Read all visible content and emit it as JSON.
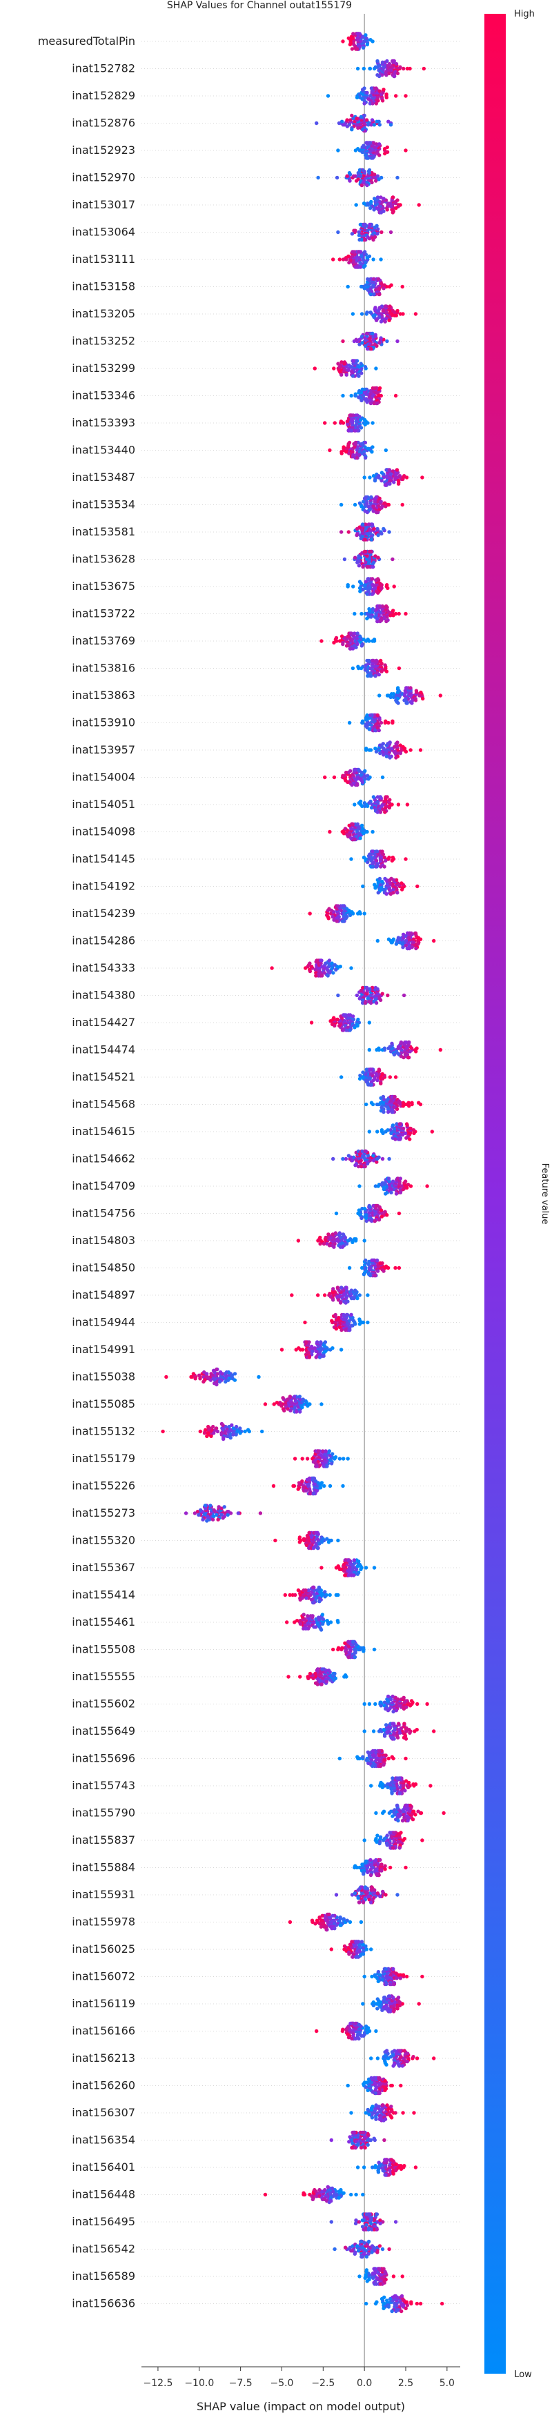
{
  "chart_data": {
    "type": "scatter",
    "title": "SHAP Values for Channel outat155179",
    "xlabel": "SHAP value (impact on model output)",
    "xlim": [
      -13.5,
      5.8
    ],
    "xticks": [
      -12.5,
      -10.0,
      -7.5,
      -5.0,
      -2.5,
      0.0,
      2.5,
      5.0
    ],
    "colorbar": {
      "label": "Feature value",
      "high": "High",
      "low": "Low",
      "low_color": "#008bfb",
      "high_color": "#ff0052"
    },
    "features": [
      {
        "name": "measuredTotalPin",
        "center": -0.3,
        "spread": 0.6,
        "min": -1.3,
        "max": 0.5,
        "trend": -1
      },
      {
        "name": "inat152782",
        "center": 1.3,
        "spread": 1.0,
        "min": -0.4,
        "max": 3.6,
        "trend": 1
      },
      {
        "name": "inat152829",
        "center": 0.5,
        "spread": 1.0,
        "min": -2.2,
        "max": 2.5,
        "trend": 1
      },
      {
        "name": "inat152876",
        "center": -0.2,
        "spread": 1.0,
        "min": -2.9,
        "max": 1.6,
        "trend": 0
      },
      {
        "name": "inat152923",
        "center": 0.5,
        "spread": 0.8,
        "min": -1.6,
        "max": 2.5,
        "trend": 1
      },
      {
        "name": "inat152970",
        "center": 0.0,
        "spread": 0.9,
        "min": -2.8,
        "max": 2.0,
        "trend": 0
      },
      {
        "name": "inat153017",
        "center": 1.1,
        "spread": 1.0,
        "min": -0.5,
        "max": 3.3,
        "trend": 1
      },
      {
        "name": "inat153064",
        "center": 0.1,
        "spread": 0.8,
        "min": -1.6,
        "max": 1.6,
        "trend": 0
      },
      {
        "name": "inat153111",
        "center": -0.4,
        "spread": 0.7,
        "min": -1.9,
        "max": 1.0,
        "trend": -1
      },
      {
        "name": "inat153158",
        "center": 0.6,
        "spread": 0.7,
        "min": -1.0,
        "max": 2.3,
        "trend": 1
      },
      {
        "name": "inat153205",
        "center": 1.0,
        "spread": 0.9,
        "min": -0.7,
        "max": 3.1,
        "trend": 1
      },
      {
        "name": "inat153252",
        "center": 0.3,
        "spread": 0.8,
        "min": -1.3,
        "max": 2.0,
        "trend": 0
      },
      {
        "name": "inat153299",
        "center": -0.8,
        "spread": 0.9,
        "min": -3.0,
        "max": 0.7,
        "trend": -1
      },
      {
        "name": "inat153346",
        "center": 0.3,
        "spread": 0.8,
        "min": -1.3,
        "max": 1.9,
        "trend": 1
      },
      {
        "name": "inat153393",
        "center": -0.7,
        "spread": 0.7,
        "min": -2.4,
        "max": 0.5,
        "trend": -1
      },
      {
        "name": "inat153440",
        "center": -0.4,
        "spread": 0.8,
        "min": -2.1,
        "max": 1.3,
        "trend": -1
      },
      {
        "name": "inat153487",
        "center": 1.5,
        "spread": 0.9,
        "min": 0.0,
        "max": 3.5,
        "trend": 1
      },
      {
        "name": "inat153534",
        "center": 0.5,
        "spread": 0.8,
        "min": -1.4,
        "max": 2.3,
        "trend": 1
      },
      {
        "name": "inat153581",
        "center": 0.2,
        "spread": 0.7,
        "min": -1.4,
        "max": 1.5,
        "trend": 0
      },
      {
        "name": "inat153628",
        "center": 0.2,
        "spread": 0.7,
        "min": -1.2,
        "max": 1.7,
        "trend": 0
      },
      {
        "name": "inat153675",
        "center": 0.4,
        "spread": 0.7,
        "min": -1.0,
        "max": 1.8,
        "trend": 1
      },
      {
        "name": "inat153722",
        "center": 0.9,
        "spread": 0.9,
        "min": -0.6,
        "max": 2.5,
        "trend": 1
      },
      {
        "name": "inat153769",
        "center": -0.7,
        "spread": 0.8,
        "min": -2.6,
        "max": 0.6,
        "trend": -1
      },
      {
        "name": "inat153816",
        "center": 0.6,
        "spread": 0.7,
        "min": -0.7,
        "max": 2.1,
        "trend": 1
      },
      {
        "name": "inat153863",
        "center": 2.7,
        "spread": 0.9,
        "min": 0.9,
        "max": 4.6,
        "trend": 1
      },
      {
        "name": "inat153910",
        "center": 0.6,
        "spread": 0.6,
        "min": -0.9,
        "max": 1.7,
        "trend": 1
      },
      {
        "name": "inat153957",
        "center": 1.5,
        "spread": 0.9,
        "min": 0.1,
        "max": 3.4,
        "trend": 1
      },
      {
        "name": "inat154004",
        "center": -0.5,
        "spread": 0.8,
        "min": -2.4,
        "max": 1.1,
        "trend": -1
      },
      {
        "name": "inat154051",
        "center": 0.8,
        "spread": 0.8,
        "min": -0.6,
        "max": 2.6,
        "trend": 1
      },
      {
        "name": "inat154098",
        "center": -0.6,
        "spread": 0.6,
        "min": -2.1,
        "max": 0.5,
        "trend": -1
      },
      {
        "name": "inat154145",
        "center": 0.8,
        "spread": 0.8,
        "min": -0.8,
        "max": 2.5,
        "trend": 1
      },
      {
        "name": "inat154192",
        "center": 1.5,
        "spread": 0.8,
        "min": -0.1,
        "max": 3.2,
        "trend": 1
      },
      {
        "name": "inat154239",
        "center": -1.5,
        "spread": 0.8,
        "min": -3.3,
        "max": 0.0,
        "trend": -1
      },
      {
        "name": "inat154286",
        "center": 2.6,
        "spread": 0.8,
        "min": 0.8,
        "max": 4.2,
        "trend": 1
      },
      {
        "name": "inat154333",
        "center": -2.5,
        "spread": 0.9,
        "min": -5.6,
        "max": -0.8,
        "trend": -1
      },
      {
        "name": "inat154380",
        "center": 0.3,
        "spread": 0.8,
        "min": -1.6,
        "max": 2.4,
        "trend": 0
      },
      {
        "name": "inat154427",
        "center": -1.1,
        "spread": 0.9,
        "min": -3.2,
        "max": 0.3,
        "trend": -1
      },
      {
        "name": "inat154474",
        "center": 2.2,
        "spread": 1.0,
        "min": 0.3,
        "max": 4.6,
        "trend": 1
      },
      {
        "name": "inat154521",
        "center": 0.5,
        "spread": 0.7,
        "min": -1.4,
        "max": 1.9,
        "trend": 1
      },
      {
        "name": "inat154568",
        "center": 1.6,
        "spread": 0.8,
        "min": 0.1,
        "max": 3.4,
        "trend": 1
      },
      {
        "name": "inat154615",
        "center": 2.1,
        "spread": 0.9,
        "min": 0.3,
        "max": 4.1,
        "trend": 1
      },
      {
        "name": "inat154662",
        "center": 0.0,
        "spread": 0.8,
        "min": -1.9,
        "max": 1.5,
        "trend": 0
      },
      {
        "name": "inat154709",
        "center": 1.8,
        "spread": 0.9,
        "min": -0.3,
        "max": 3.8,
        "trend": 1
      },
      {
        "name": "inat154756",
        "center": 0.5,
        "spread": 0.8,
        "min": -1.7,
        "max": 2.1,
        "trend": 1
      },
      {
        "name": "inat154803",
        "center": -1.7,
        "spread": 0.9,
        "min": -4.0,
        "max": 0.0,
        "trend": -1
      },
      {
        "name": "inat154850",
        "center": 0.6,
        "spread": 0.7,
        "min": -0.9,
        "max": 2.1,
        "trend": 1
      },
      {
        "name": "inat154897",
        "center": -1.3,
        "spread": 0.9,
        "min": -4.4,
        "max": 0.2,
        "trend": -1
      },
      {
        "name": "inat154944",
        "center": -1.1,
        "spread": 0.8,
        "min": -3.6,
        "max": 0.2,
        "trend": -1
      },
      {
        "name": "inat154991",
        "center": -3.0,
        "spread": 0.8,
        "min": -5.0,
        "max": -1.4,
        "trend": -1
      },
      {
        "name": "inat155038",
        "center": -9.0,
        "spread": 1.2,
        "min": -12.0,
        "max": -6.4,
        "trend": -1
      },
      {
        "name": "inat155085",
        "center": -4.3,
        "spread": 0.9,
        "min": -6.0,
        "max": -2.6,
        "trend": -1
      },
      {
        "name": "inat155132",
        "center": -8.5,
        "spread": 1.2,
        "min": -12.2,
        "max": -6.2,
        "trend": -1
      },
      {
        "name": "inat155179",
        "center": -2.5,
        "spread": 0.8,
        "min": -4.2,
        "max": -1.0,
        "trend": -1
      },
      {
        "name": "inat155226",
        "center": -3.2,
        "spread": 0.9,
        "min": -5.5,
        "max": -1.3,
        "trend": -1
      },
      {
        "name": "inat155273",
        "center": -9.2,
        "spread": 1.1,
        "min": -10.8,
        "max": -6.3,
        "trend": 0
      },
      {
        "name": "inat155320",
        "center": -3.0,
        "spread": 0.8,
        "min": -5.4,
        "max": -1.6,
        "trend": -1
      },
      {
        "name": "inat155367",
        "center": -0.8,
        "spread": 0.6,
        "min": -2.6,
        "max": 0.6,
        "trend": -1
      },
      {
        "name": "inat155414",
        "center": -3.2,
        "spread": 0.9,
        "min": -4.8,
        "max": -1.6,
        "trend": -1
      },
      {
        "name": "inat155461",
        "center": -3.2,
        "spread": 0.9,
        "min": -4.7,
        "max": -1.6,
        "trend": -1
      },
      {
        "name": "inat155508",
        "center": -0.8,
        "spread": 0.6,
        "min": -1.9,
        "max": 0.6,
        "trend": -1
      },
      {
        "name": "inat155555",
        "center": -2.5,
        "spread": 0.9,
        "min": -4.6,
        "max": -1.1,
        "trend": -1
      },
      {
        "name": "inat155602",
        "center": 1.8,
        "spread": 0.9,
        "min": 0.0,
        "max": 3.8,
        "trend": 1
      },
      {
        "name": "inat155649",
        "center": 1.8,
        "spread": 0.9,
        "min": 0.0,
        "max": 4.2,
        "trend": 1
      },
      {
        "name": "inat155696",
        "center": 0.7,
        "spread": 0.8,
        "min": -1.5,
        "max": 2.5,
        "trend": 1
      },
      {
        "name": "inat155743",
        "center": 2.0,
        "spread": 0.9,
        "min": 0.4,
        "max": 4.0,
        "trend": 1
      },
      {
        "name": "inat155790",
        "center": 2.3,
        "spread": 0.9,
        "min": 0.7,
        "max": 4.8,
        "trend": 1
      },
      {
        "name": "inat155837",
        "center": 1.6,
        "spread": 0.8,
        "min": 0.0,
        "max": 3.5,
        "trend": 1
      },
      {
        "name": "inat155884",
        "center": 0.5,
        "spread": 0.8,
        "min": -0.6,
        "max": 2.5,
        "trend": 1
      },
      {
        "name": "inat155931",
        "center": 0.2,
        "spread": 0.8,
        "min": -1.7,
        "max": 2.0,
        "trend": 0
      },
      {
        "name": "inat155978",
        "center": -2.0,
        "spread": 0.9,
        "min": -4.5,
        "max": -0.2,
        "trend": -1
      },
      {
        "name": "inat156025",
        "center": -0.5,
        "spread": 0.6,
        "min": -2.0,
        "max": 0.4,
        "trend": -1
      },
      {
        "name": "inat156072",
        "center": 1.5,
        "spread": 0.9,
        "min": 0.0,
        "max": 3.5,
        "trend": 1
      },
      {
        "name": "inat156119",
        "center": 1.5,
        "spread": 0.8,
        "min": -0.1,
        "max": 3.3,
        "trend": 1
      },
      {
        "name": "inat156166",
        "center": -0.6,
        "spread": 0.7,
        "min": -2.9,
        "max": 0.7,
        "trend": -1
      },
      {
        "name": "inat156213",
        "center": 2.0,
        "spread": 0.9,
        "min": 0.4,
        "max": 4.2,
        "trend": 1
      },
      {
        "name": "inat156260",
        "center": 0.7,
        "spread": 0.7,
        "min": -1.0,
        "max": 2.2,
        "trend": 1
      },
      {
        "name": "inat156307",
        "center": 1.0,
        "spread": 0.8,
        "min": -0.8,
        "max": 3.0,
        "trend": 1
      },
      {
        "name": "inat156354",
        "center": -0.3,
        "spread": 0.7,
        "min": -2.0,
        "max": 1.2,
        "trend": 0
      },
      {
        "name": "inat156401",
        "center": 1.3,
        "spread": 0.8,
        "min": -0.4,
        "max": 3.1,
        "trend": 1
      },
      {
        "name": "inat156448",
        "center": -2.4,
        "spread": 1.1,
        "min": -6.0,
        "max": -0.1,
        "trend": -1
      },
      {
        "name": "inat156495",
        "center": 0.3,
        "spread": 0.8,
        "min": -2.0,
        "max": 1.9,
        "trend": 0
      },
      {
        "name": "inat156542",
        "center": 0.0,
        "spread": 0.8,
        "min": -1.8,
        "max": 1.5,
        "trend": 0
      },
      {
        "name": "inat156589",
        "center": 0.8,
        "spread": 0.7,
        "min": -0.3,
        "max": 2.3,
        "trend": 1
      },
      {
        "name": "inat156636",
        "center": 2.0,
        "spread": 0.9,
        "min": 0.1,
        "max": 4.7,
        "trend": 1
      }
    ]
  }
}
